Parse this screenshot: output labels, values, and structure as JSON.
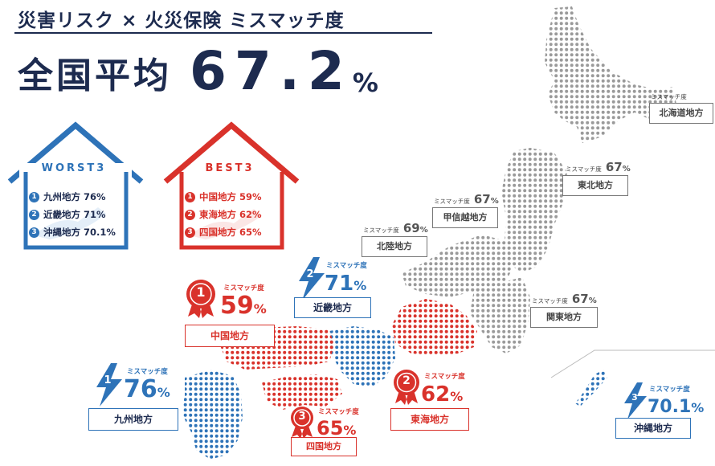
{
  "header": {
    "title": "災害リスク × 火災保険 ミスマッチ度",
    "average_label": "全国平均",
    "average_value": "67.2",
    "average_unit": "%"
  },
  "worst3": {
    "title": "WORST3",
    "items": [
      {
        "rank": "1",
        "text": "九州地方 76%"
      },
      {
        "rank": "2",
        "text": "近畿地方 71%"
      },
      {
        "rank": "3",
        "text": "沖縄地方 70.1%"
      }
    ]
  },
  "best3": {
    "title": "BEST3",
    "items": [
      {
        "rank": "1",
        "text": "中国地方 59%"
      },
      {
        "rank": "2",
        "text": "東海地方 62%"
      },
      {
        "rank": "3",
        "text": "四国地方 65%"
      }
    ]
  },
  "mismatch_label": "ミスマッチ度",
  "regions_gray": [
    {
      "name": "北海道地方",
      "value": "67",
      "unit": "%"
    },
    {
      "name": "東北地方",
      "value": "67",
      "unit": "%"
    },
    {
      "name": "甲信越地方",
      "value": "67",
      "unit": "%"
    },
    {
      "name": "北陸地方",
      "value": "69",
      "unit": "%"
    },
    {
      "name": "関東地方",
      "value": "67",
      "unit": "%"
    }
  ],
  "regions_ranked": [
    {
      "name": "中国地方",
      "value": "59",
      "unit": "%",
      "rank": "1",
      "kind": "best"
    },
    {
      "name": "東海地方",
      "value": "62",
      "unit": "%",
      "rank": "2",
      "kind": "best"
    },
    {
      "name": "四国地方",
      "value": "65",
      "unit": "%",
      "rank": "3",
      "kind": "best"
    },
    {
      "name": "九州地方",
      "value": "76",
      "unit": "%",
      "rank": "1",
      "kind": "worst"
    },
    {
      "name": "近畿地方",
      "value": "71",
      "unit": "%",
      "rank": "2",
      "kind": "worst"
    },
    {
      "name": "沖縄地方",
      "value": "70.1",
      "unit": "%",
      "rank": "3",
      "kind": "worst"
    }
  ],
  "colors": {
    "navy": "#1d2b4f",
    "best_red": "#d9322b",
    "worst_blue": "#2e73b8",
    "neutral_gray": "#9a9a9a"
  }
}
